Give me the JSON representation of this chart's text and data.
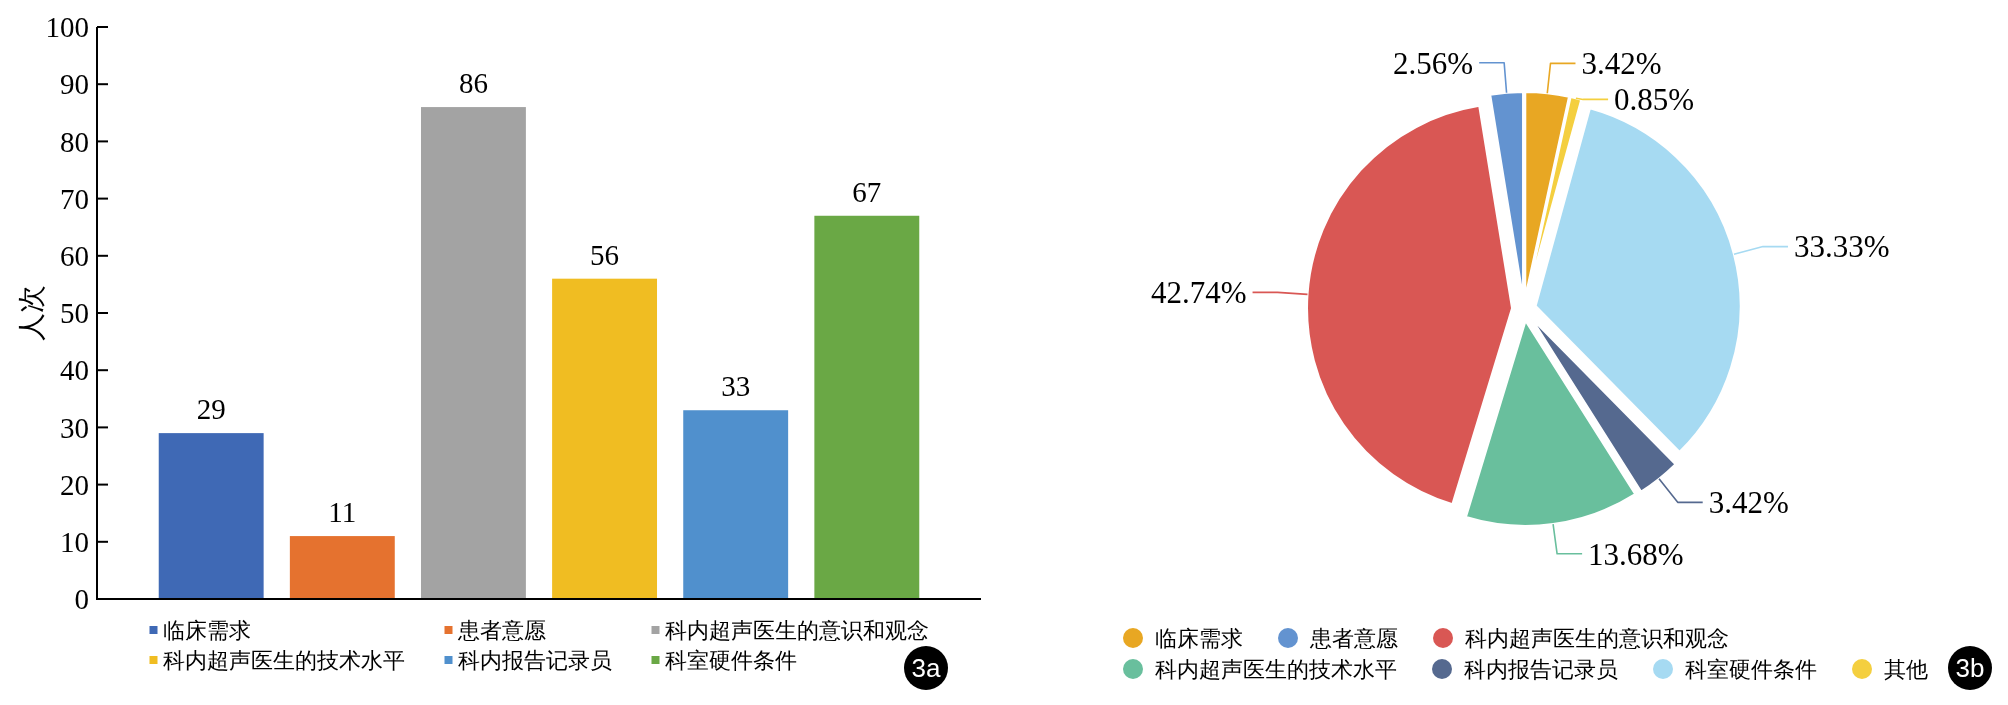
{
  "chart_data": [
    {
      "type": "bar",
      "categories": [
        null
      ],
      "series": [
        {
          "name": "临床需求",
          "color": "#3f69b5",
          "values": [
            29
          ]
        },
        {
          "name": "患者意愿",
          "color": "#e5722f",
          "values": [
            11
          ]
        },
        {
          "name": "科内超声医生的意识和观念",
          "color": "#a3a3a3",
          "values": [
            86
          ]
        },
        {
          "name": "科内超声医生的技术水平",
          "color": "#f0bd22",
          "values": [
            56
          ]
        },
        {
          "name": "科内报告记录员",
          "color": "#5090cd",
          "values": [
            33
          ]
        },
        {
          "name": "科室硬件条件",
          "color": "#6aa845",
          "values": [
            67
          ]
        }
      ],
      "ylabel": "人次",
      "ylim": [
        0,
        100
      ],
      "yticks": [
        0,
        10,
        20,
        30,
        40,
        50,
        60,
        70,
        80,
        90,
        100
      ],
      "data_labels": true,
      "legend": "bottom",
      "annotations": [
        "3a"
      ]
    },
    {
      "type": "pie",
      "categories": [
        "临床需求",
        "患者意愿",
        "科内超声医生的意识和观念",
        "科内超声医生的技术水平",
        "科内报告记录员",
        "科室硬件条件",
        "其他"
      ],
      "values": [
        3.42,
        2.56,
        42.74,
        13.68,
        3.42,
        33.33,
        0.85
      ],
      "colors": [
        "#e8a723",
        "#6393d0",
        "#d95754",
        "#69bf9d",
        "#55698f",
        "#a6daf2",
        "#f4cf3f"
      ],
      "value_labels": [
        "3.42%",
        "2.56%",
        "42.74%",
        "13.68%",
        "3.42%",
        "33.33%",
        "0.85%"
      ],
      "legend": "bottom",
      "annotations": [
        "3b"
      ]
    }
  ]
}
